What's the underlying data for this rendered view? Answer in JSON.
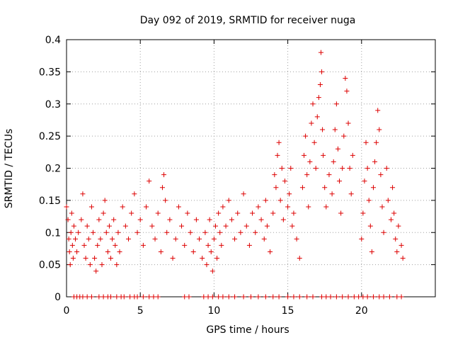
{
  "chart_data": {
    "type": "scatter",
    "title": "Day 092 of 2019, SRMTID for receiver nuga",
    "xlabel": "GPS time / hours",
    "ylabel": "SRMTID / TECUs",
    "xlim": [
      0,
      25
    ],
    "ylim": [
      0,
      0.4
    ],
    "xticks": [
      0,
      5,
      10,
      15,
      20
    ],
    "xtick_labels": [
      "0",
      "5",
      "10",
      "15",
      "20"
    ],
    "yticks": [
      0,
      0.05,
      0.1,
      0.15,
      0.2,
      0.25,
      0.3,
      0.35,
      0.4
    ],
    "ytick_labels": [
      "0",
      "0.05",
      "0.1",
      "0.15",
      "0.2",
      "0.25",
      "0.3",
      "0.35",
      "0.4"
    ],
    "grid": true,
    "marker": "+",
    "color": "#dd0000",
    "series": [
      {
        "name": "SRMTID",
        "points": [
          [
            0.0,
            0.14
          ],
          [
            0.1,
            0.12
          ],
          [
            0.15,
            0.09
          ],
          [
            0.2,
            0.07
          ],
          [
            0.25,
            0.05
          ],
          [
            0.3,
            0.1
          ],
          [
            0.35,
            0.13
          ],
          [
            0.4,
            0.08
          ],
          [
            0.45,
            0.06
          ],
          [
            0.5,
            0.11
          ],
          [
            0.6,
            0.09
          ],
          [
            0.7,
            0.07
          ],
          [
            0.8,
            0.1
          ],
          [
            1.0,
            0.12
          ],
          [
            1.1,
            0.16
          ],
          [
            1.2,
            0.08
          ],
          [
            1.3,
            0.06
          ],
          [
            1.4,
            0.11
          ],
          [
            1.5,
            0.09
          ],
          [
            1.6,
            0.05
          ],
          [
            1.7,
            0.14
          ],
          [
            1.8,
            0.1
          ],
          [
            1.9,
            0.06
          ],
          [
            2.0,
            0.04
          ],
          [
            2.1,
            0.08
          ],
          [
            2.2,
            0.12
          ],
          [
            2.3,
            0.09
          ],
          [
            2.4,
            0.05
          ],
          [
            2.5,
            0.13
          ],
          [
            2.6,
            0.15
          ],
          [
            2.7,
            0.1
          ],
          [
            2.8,
            0.07
          ],
          [
            2.9,
            0.11
          ],
          [
            3.0,
            0.06
          ],
          [
            3.1,
            0.09
          ],
          [
            3.2,
            0.12
          ],
          [
            3.3,
            0.08
          ],
          [
            3.4,
            0.05
          ],
          [
            3.5,
            0.1
          ],
          [
            3.6,
            0.07
          ],
          [
            3.8,
            0.14
          ],
          [
            4.0,
            0.11
          ],
          [
            4.2,
            0.09
          ],
          [
            4.4,
            0.13
          ],
          [
            4.6,
            0.16
          ],
          [
            4.8,
            0.1
          ],
          [
            5.0,
            0.12
          ],
          [
            5.2,
            0.08
          ],
          [
            5.4,
            0.14
          ],
          [
            5.6,
            0.18
          ],
          [
            5.8,
            0.11
          ],
          [
            6.0,
            0.09
          ],
          [
            6.2,
            0.13
          ],
          [
            6.4,
            0.07
          ],
          [
            6.5,
            0.17
          ],
          [
            6.6,
            0.19
          ],
          [
            6.7,
            0.15
          ],
          [
            6.8,
            0.1
          ],
          [
            7.0,
            0.12
          ],
          [
            7.2,
            0.06
          ],
          [
            7.4,
            0.09
          ],
          [
            7.6,
            0.14
          ],
          [
            7.8,
            0.11
          ],
          [
            8.0,
            0.08
          ],
          [
            8.2,
            0.13
          ],
          [
            8.4,
            0.1
          ],
          [
            8.6,
            0.07
          ],
          [
            8.8,
            0.12
          ],
          [
            9.0,
            0.09
          ],
          [
            9.2,
            0.06
          ],
          [
            9.4,
            0.1
          ],
          [
            9.5,
            0.05
          ],
          [
            9.6,
            0.08
          ],
          [
            9.7,
            0.12
          ],
          [
            9.8,
            0.07
          ],
          [
            9.9,
            0.04
          ],
          [
            10.0,
            0.09
          ],
          [
            10.1,
            0.11
          ],
          [
            10.2,
            0.06
          ],
          [
            10.3,
            0.13
          ],
          [
            10.4,
            0.1
          ],
          [
            10.5,
            0.08
          ],
          [
            10.6,
            0.14
          ],
          [
            10.8,
            0.11
          ],
          [
            11.0,
            0.15
          ],
          [
            11.2,
            0.12
          ],
          [
            11.4,
            0.09
          ],
          [
            11.6,
            0.13
          ],
          [
            11.8,
            0.1
          ],
          [
            12.0,
            0.16
          ],
          [
            12.2,
            0.11
          ],
          [
            12.4,
            0.08
          ],
          [
            12.6,
            0.13
          ],
          [
            12.8,
            0.1
          ],
          [
            13.0,
            0.14
          ],
          [
            13.2,
            0.12
          ],
          [
            13.4,
            0.09
          ],
          [
            13.5,
            0.15
          ],
          [
            13.6,
            0.11
          ],
          [
            13.8,
            0.07
          ],
          [
            14.0,
            0.13
          ],
          [
            14.1,
            0.19
          ],
          [
            14.2,
            0.17
          ],
          [
            14.3,
            0.22
          ],
          [
            14.4,
            0.24
          ],
          [
            14.5,
            0.15
          ],
          [
            14.6,
            0.2
          ],
          [
            14.7,
            0.12
          ],
          [
            14.8,
            0.18
          ],
          [
            15.0,
            0.14
          ],
          [
            15.1,
            0.16
          ],
          [
            15.2,
            0.2
          ],
          [
            15.3,
            0.11
          ],
          [
            15.4,
            0.13
          ],
          [
            15.6,
            0.09
          ],
          [
            15.8,
            0.06
          ],
          [
            16.0,
            0.17
          ],
          [
            16.1,
            0.22
          ],
          [
            16.2,
            0.25
          ],
          [
            16.3,
            0.19
          ],
          [
            16.4,
            0.14
          ],
          [
            16.5,
            0.21
          ],
          [
            16.6,
            0.27
          ],
          [
            16.7,
            0.3
          ],
          [
            16.8,
            0.24
          ],
          [
            16.9,
            0.2
          ],
          [
            17.0,
            0.28
          ],
          [
            17.1,
            0.31
          ],
          [
            17.2,
            0.33
          ],
          [
            17.25,
            0.38
          ],
          [
            17.3,
            0.35
          ],
          [
            17.35,
            0.26
          ],
          [
            17.4,
            0.22
          ],
          [
            17.5,
            0.17
          ],
          [
            17.6,
            0.14
          ],
          [
            17.8,
            0.19
          ],
          [
            18.0,
            0.16
          ],
          [
            18.1,
            0.21
          ],
          [
            18.2,
            0.26
          ],
          [
            18.3,
            0.3
          ],
          [
            18.4,
            0.23
          ],
          [
            18.5,
            0.18
          ],
          [
            18.6,
            0.13
          ],
          [
            18.7,
            0.2
          ],
          [
            18.8,
            0.25
          ],
          [
            18.9,
            0.34
          ],
          [
            19.0,
            0.32
          ],
          [
            19.1,
            0.27
          ],
          [
            19.2,
            0.2
          ],
          [
            19.3,
            0.16
          ],
          [
            19.4,
            0.22
          ],
          [
            20.0,
            0.09
          ],
          [
            20.1,
            0.13
          ],
          [
            20.2,
            0.18
          ],
          [
            20.3,
            0.24
          ],
          [
            20.4,
            0.2
          ],
          [
            20.5,
            0.15
          ],
          [
            20.6,
            0.11
          ],
          [
            20.7,
            0.07
          ],
          [
            20.8,
            0.17
          ],
          [
            20.9,
            0.21
          ],
          [
            21.0,
            0.24
          ],
          [
            21.1,
            0.29
          ],
          [
            21.2,
            0.26
          ],
          [
            21.3,
            0.19
          ],
          [
            21.4,
            0.14
          ],
          [
            21.5,
            0.1
          ],
          [
            21.7,
            0.2
          ],
          [
            21.8,
            0.15
          ],
          [
            22.0,
            0.12
          ],
          [
            22.1,
            0.17
          ],
          [
            22.2,
            0.13
          ],
          [
            22.3,
            0.09
          ],
          [
            22.4,
            0.07
          ],
          [
            22.5,
            0.11
          ],
          [
            22.7,
            0.08
          ],
          [
            22.8,
            0.06
          ]
        ],
        "zero_x": [
          0.5,
          0.7,
          0.9,
          1.1,
          1.4,
          1.7,
          2.2,
          2.5,
          2.8,
          3.0,
          3.4,
          3.7,
          3.9,
          4.3,
          4.6,
          4.8,
          5.2,
          5.6,
          5.9,
          6.2,
          8.0,
          8.3,
          9.3,
          9.6,
          9.9,
          10.3,
          10.6,
          11.0,
          11.4,
          12.0,
          12.5,
          13.0,
          13.5,
          14.0,
          14.4,
          15.0,
          15.4,
          15.8,
          16.3,
          16.7,
          17.3,
          17.6,
          17.9,
          18.3,
          18.7,
          19.1,
          19.5,
          19.8,
          20.1,
          20.4,
          20.8,
          21.2,
          21.5,
          21.9,
          22.4,
          22.7
        ]
      }
    ]
  }
}
